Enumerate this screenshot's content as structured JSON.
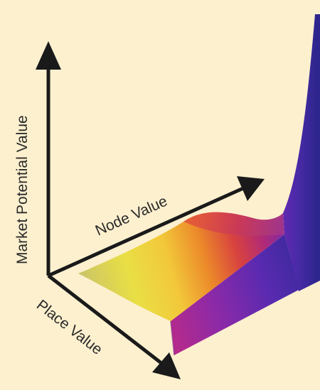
{
  "diagram": {
    "axes": {
      "vertical": {
        "label": "Market Potential Value"
      },
      "depth": {
        "label": "Node Value"
      },
      "front": {
        "label": "Place Value"
      }
    },
    "colors": {
      "background": "#fdf0cf",
      "axis": "#1a1a1a",
      "surface_low": "#c9bf63",
      "surface_mid": "#f0d83a",
      "surface_orange": "#e8732a",
      "surface_red": "#d0344a",
      "surface_magenta": "#a0259a",
      "surface_purple": "#4a2aa0"
    }
  }
}
